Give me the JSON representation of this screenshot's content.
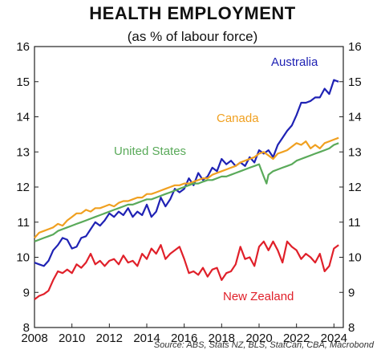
{
  "chart_data": {
    "type": "line",
    "title": "HEALTH EMPLOYMENT",
    "subtitle": "(as % of labour force)",
    "source": "Source: ABS, Stats NZ, BLS, StatCan, CBA, Macrobond",
    "xlabel": "",
    "ylabel": "",
    "xlim": [
      2008,
      2024.5
    ],
    "ylim": [
      8,
      16
    ],
    "x_ticks": [
      "2008",
      "2010",
      "2012",
      "2014",
      "2016",
      "2018",
      "2020",
      "2022",
      "2024"
    ],
    "y_ticks": [
      "8",
      "9",
      "10",
      "11",
      "12",
      "13",
      "14",
      "15",
      "16"
    ],
    "grid": false,
    "series": [
      {
        "name": "Australia",
        "color": "#1f22b4",
        "points": [
          [
            2008.0,
            9.85
          ],
          [
            2008.25,
            9.8
          ],
          [
            2008.5,
            9.75
          ],
          [
            2008.75,
            9.9
          ],
          [
            2009.0,
            10.2
          ],
          [
            2009.25,
            10.35
          ],
          [
            2009.5,
            10.55
          ],
          [
            2009.75,
            10.5
          ],
          [
            2010.0,
            10.25
          ],
          [
            2010.25,
            10.3
          ],
          [
            2010.5,
            10.55
          ],
          [
            2010.75,
            10.6
          ],
          [
            2011.0,
            10.8
          ],
          [
            2011.25,
            11.0
          ],
          [
            2011.5,
            10.9
          ],
          [
            2011.75,
            11.05
          ],
          [
            2012.0,
            11.25
          ],
          [
            2012.25,
            11.15
          ],
          [
            2012.5,
            11.3
          ],
          [
            2012.75,
            11.2
          ],
          [
            2013.0,
            11.4
          ],
          [
            2013.25,
            11.15
          ],
          [
            2013.5,
            11.3
          ],
          [
            2013.75,
            11.2
          ],
          [
            2014.0,
            11.5
          ],
          [
            2014.25,
            11.15
          ],
          [
            2014.5,
            11.3
          ],
          [
            2014.75,
            11.7
          ],
          [
            2015.0,
            11.45
          ],
          [
            2015.25,
            11.65
          ],
          [
            2015.5,
            11.95
          ],
          [
            2015.75,
            11.85
          ],
          [
            2016.0,
            11.95
          ],
          [
            2016.25,
            12.25
          ],
          [
            2016.5,
            12.05
          ],
          [
            2016.75,
            12.4
          ],
          [
            2017.0,
            12.2
          ],
          [
            2017.25,
            12.3
          ],
          [
            2017.5,
            12.55
          ],
          [
            2017.75,
            12.45
          ],
          [
            2018.0,
            12.8
          ],
          [
            2018.25,
            12.65
          ],
          [
            2018.5,
            12.75
          ],
          [
            2018.75,
            12.6
          ],
          [
            2019.0,
            12.7
          ],
          [
            2019.25,
            12.6
          ],
          [
            2019.5,
            12.85
          ],
          [
            2019.75,
            12.7
          ],
          [
            2020.0,
            13.05
          ],
          [
            2020.25,
            12.95
          ],
          [
            2020.5,
            13.05
          ],
          [
            2020.75,
            12.85
          ],
          [
            2021.0,
            13.2
          ],
          [
            2021.25,
            13.4
          ],
          [
            2021.5,
            13.6
          ],
          [
            2021.75,
            13.75
          ],
          [
            2022.0,
            14.05
          ],
          [
            2022.25,
            14.4
          ],
          [
            2022.5,
            14.4
          ],
          [
            2022.75,
            14.45
          ],
          [
            2023.0,
            14.55
          ],
          [
            2023.25,
            14.55
          ],
          [
            2023.5,
            14.8
          ],
          [
            2023.75,
            14.65
          ],
          [
            2024.0,
            15.05
          ],
          [
            2024.25,
            15.0
          ]
        ]
      },
      {
        "name": "Canada",
        "color": "#f0a020",
        "points": [
          [
            2008.0,
            10.55
          ],
          [
            2008.25,
            10.7
          ],
          [
            2008.5,
            10.75
          ],
          [
            2008.75,
            10.8
          ],
          [
            2009.0,
            10.85
          ],
          [
            2009.25,
            10.95
          ],
          [
            2009.5,
            10.9
          ],
          [
            2009.75,
            11.05
          ],
          [
            2010.0,
            11.15
          ],
          [
            2010.25,
            11.25
          ],
          [
            2010.5,
            11.25
          ],
          [
            2010.75,
            11.35
          ],
          [
            2011.0,
            11.3
          ],
          [
            2011.25,
            11.4
          ],
          [
            2011.5,
            11.4
          ],
          [
            2011.75,
            11.45
          ],
          [
            2012.0,
            11.5
          ],
          [
            2012.25,
            11.45
          ],
          [
            2012.5,
            11.55
          ],
          [
            2012.75,
            11.6
          ],
          [
            2013.0,
            11.6
          ],
          [
            2013.25,
            11.65
          ],
          [
            2013.5,
            11.7
          ],
          [
            2013.75,
            11.7
          ],
          [
            2014.0,
            11.8
          ],
          [
            2014.25,
            11.8
          ],
          [
            2014.5,
            11.85
          ],
          [
            2014.75,
            11.9
          ],
          [
            2015.0,
            11.95
          ],
          [
            2015.25,
            12.0
          ],
          [
            2015.5,
            12.05
          ],
          [
            2015.75,
            12.05
          ],
          [
            2016.0,
            12.1
          ],
          [
            2016.25,
            12.1
          ],
          [
            2016.5,
            12.15
          ],
          [
            2016.75,
            12.2
          ],
          [
            2017.0,
            12.25
          ],
          [
            2017.25,
            12.25
          ],
          [
            2017.5,
            12.35
          ],
          [
            2017.75,
            12.4
          ],
          [
            2018.0,
            12.45
          ],
          [
            2018.25,
            12.5
          ],
          [
            2018.5,
            12.55
          ],
          [
            2018.75,
            12.6
          ],
          [
            2019.0,
            12.7
          ],
          [
            2019.25,
            12.75
          ],
          [
            2019.5,
            12.8
          ],
          [
            2019.75,
            12.85
          ],
          [
            2020.0,
            12.95
          ],
          [
            2020.25,
            13.0
          ],
          [
            2020.5,
            12.9
          ],
          [
            2020.75,
            12.8
          ],
          [
            2021.0,
            12.95
          ],
          [
            2021.25,
            13.0
          ],
          [
            2021.5,
            13.05
          ],
          [
            2021.75,
            13.15
          ],
          [
            2022.0,
            13.25
          ],
          [
            2022.25,
            13.2
          ],
          [
            2022.5,
            13.3
          ],
          [
            2022.75,
            13.1
          ],
          [
            2023.0,
            13.2
          ],
          [
            2023.25,
            13.1
          ],
          [
            2023.5,
            13.25
          ],
          [
            2023.75,
            13.3
          ],
          [
            2024.0,
            13.35
          ],
          [
            2024.25,
            13.4
          ]
        ]
      },
      {
        "name": "United States",
        "color": "#5aaa5a",
        "points": [
          [
            2008.0,
            10.45
          ],
          [
            2008.25,
            10.5
          ],
          [
            2008.5,
            10.55
          ],
          [
            2008.75,
            10.6
          ],
          [
            2009.0,
            10.65
          ],
          [
            2009.25,
            10.75
          ],
          [
            2009.5,
            10.8
          ],
          [
            2009.75,
            10.85
          ],
          [
            2010.0,
            10.9
          ],
          [
            2010.25,
            10.95
          ],
          [
            2010.5,
            11.0
          ],
          [
            2010.75,
            11.05
          ],
          [
            2011.0,
            11.1
          ],
          [
            2011.25,
            11.15
          ],
          [
            2011.5,
            11.2
          ],
          [
            2011.75,
            11.25
          ],
          [
            2012.0,
            11.3
          ],
          [
            2012.25,
            11.35
          ],
          [
            2012.5,
            11.4
          ],
          [
            2012.75,
            11.45
          ],
          [
            2013.0,
            11.5
          ],
          [
            2013.25,
            11.5
          ],
          [
            2013.5,
            11.55
          ],
          [
            2013.75,
            11.6
          ],
          [
            2014.0,
            11.65
          ],
          [
            2014.25,
            11.65
          ],
          [
            2014.5,
            11.7
          ],
          [
            2014.75,
            11.75
          ],
          [
            2015.0,
            11.8
          ],
          [
            2015.25,
            11.85
          ],
          [
            2015.5,
            11.9
          ],
          [
            2015.75,
            11.95
          ],
          [
            2016.0,
            12.0
          ],
          [
            2016.25,
            12.05
          ],
          [
            2016.5,
            12.1
          ],
          [
            2016.75,
            12.1
          ],
          [
            2017.0,
            12.15
          ],
          [
            2017.25,
            12.2
          ],
          [
            2017.5,
            12.2
          ],
          [
            2017.75,
            12.25
          ],
          [
            2018.0,
            12.3
          ],
          [
            2018.25,
            12.3
          ],
          [
            2018.5,
            12.35
          ],
          [
            2018.75,
            12.4
          ],
          [
            2019.0,
            12.45
          ],
          [
            2019.25,
            12.5
          ],
          [
            2019.5,
            12.55
          ],
          [
            2019.75,
            12.6
          ],
          [
            2020.0,
            12.65
          ],
          [
            2020.25,
            12.3
          ],
          [
            2020.4,
            12.1
          ],
          [
            2020.5,
            12.35
          ],
          [
            2020.75,
            12.45
          ],
          [
            2021.0,
            12.5
          ],
          [
            2021.25,
            12.55
          ],
          [
            2021.5,
            12.6
          ],
          [
            2021.75,
            12.65
          ],
          [
            2022.0,
            12.75
          ],
          [
            2022.25,
            12.8
          ],
          [
            2022.5,
            12.85
          ],
          [
            2022.75,
            12.9
          ],
          [
            2023.0,
            12.95
          ],
          [
            2023.25,
            13.0
          ],
          [
            2023.5,
            13.05
          ],
          [
            2023.75,
            13.1
          ],
          [
            2024.0,
            13.2
          ],
          [
            2024.25,
            13.25
          ]
        ]
      },
      {
        "name": "New Zealand",
        "color": "#e0202a",
        "points": [
          [
            2008.0,
            8.8
          ],
          [
            2008.25,
            8.9
          ],
          [
            2008.5,
            8.95
          ],
          [
            2008.75,
            9.05
          ],
          [
            2009.0,
            9.35
          ],
          [
            2009.25,
            9.6
          ],
          [
            2009.5,
            9.55
          ],
          [
            2009.75,
            9.65
          ],
          [
            2010.0,
            9.55
          ],
          [
            2010.25,
            9.8
          ],
          [
            2010.5,
            9.7
          ],
          [
            2010.75,
            9.85
          ],
          [
            2011.0,
            10.1
          ],
          [
            2011.25,
            9.8
          ],
          [
            2011.5,
            9.9
          ],
          [
            2011.75,
            9.75
          ],
          [
            2012.0,
            9.9
          ],
          [
            2012.25,
            9.95
          ],
          [
            2012.5,
            9.8
          ],
          [
            2012.75,
            10.05
          ],
          [
            2013.0,
            9.85
          ],
          [
            2013.25,
            9.9
          ],
          [
            2013.5,
            9.75
          ],
          [
            2013.75,
            10.1
          ],
          [
            2014.0,
            9.95
          ],
          [
            2014.25,
            10.25
          ],
          [
            2014.5,
            10.1
          ],
          [
            2014.75,
            10.35
          ],
          [
            2015.0,
            9.95
          ],
          [
            2015.25,
            10.1
          ],
          [
            2015.5,
            10.2
          ],
          [
            2015.75,
            10.3
          ],
          [
            2016.0,
            9.95
          ],
          [
            2016.25,
            9.55
          ],
          [
            2016.5,
            9.6
          ],
          [
            2016.75,
            9.5
          ],
          [
            2017.0,
            9.7
          ],
          [
            2017.25,
            9.45
          ],
          [
            2017.5,
            9.65
          ],
          [
            2017.75,
            9.7
          ],
          [
            2018.0,
            9.35
          ],
          [
            2018.25,
            9.55
          ],
          [
            2018.5,
            9.6
          ],
          [
            2018.75,
            9.8
          ],
          [
            2019.0,
            10.3
          ],
          [
            2019.25,
            9.95
          ],
          [
            2019.5,
            10.0
          ],
          [
            2019.75,
            9.75
          ],
          [
            2020.0,
            10.3
          ],
          [
            2020.25,
            10.45
          ],
          [
            2020.5,
            10.2
          ],
          [
            2020.75,
            10.45
          ],
          [
            2021.0,
            10.2
          ],
          [
            2021.25,
            9.85
          ],
          [
            2021.5,
            10.45
          ],
          [
            2021.75,
            10.3
          ],
          [
            2022.0,
            10.2
          ],
          [
            2022.25,
            9.95
          ],
          [
            2022.5,
            10.1
          ],
          [
            2022.75,
            10.0
          ],
          [
            2023.0,
            9.85
          ],
          [
            2023.25,
            10.1
          ],
          [
            2023.5,
            9.6
          ],
          [
            2023.75,
            9.75
          ],
          [
            2024.0,
            10.25
          ],
          [
            2024.25,
            10.35
          ]
        ]
      }
    ]
  }
}
